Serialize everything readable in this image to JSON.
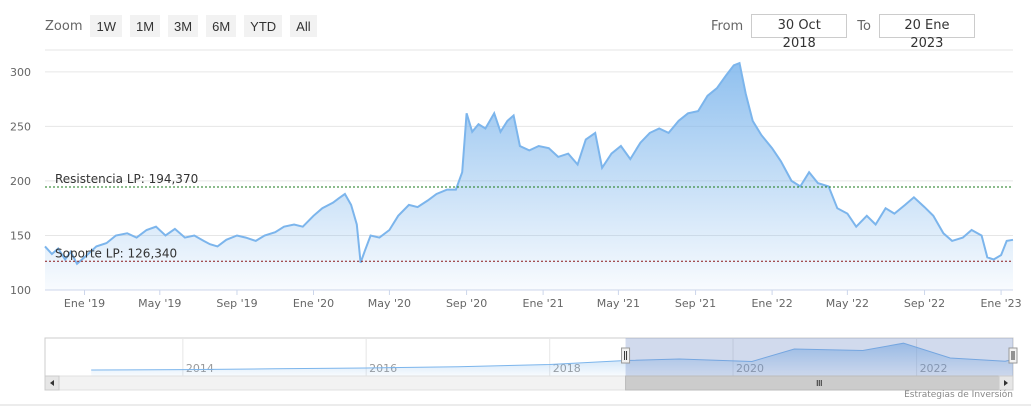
{
  "zoom": {
    "label": "Zoom",
    "buttons": [
      "1W",
      "1M",
      "3M",
      "6M",
      "YTD",
      "All"
    ]
  },
  "range": {
    "from_label": "From",
    "from_value": "30 Oct 2018",
    "to_label": "To",
    "to_value": "20 Ene 2023"
  },
  "credit": "Estrategias de Inversión",
  "colors": {
    "line": "#7cb5ec",
    "area_top": "#7cb5ec",
    "resistance": "#1a7a1a",
    "support": "#8b1a1a",
    "navigator_mask": "#6685c2",
    "grid": "#e6e6e6"
  },
  "chart_data": {
    "type": "area",
    "ylim": [
      100,
      320
    ],
    "yticks": [
      100,
      150,
      200,
      250,
      300
    ],
    "xlim": [
      "2018-10-30",
      "2023-01-20"
    ],
    "xticks": [
      {
        "date": "2019-01-01",
        "label": "Ene '19"
      },
      {
        "date": "2019-05-01",
        "label": "May '19"
      },
      {
        "date": "2019-09-01",
        "label": "Sep '19"
      },
      {
        "date": "2020-01-01",
        "label": "Ene '20"
      },
      {
        "date": "2020-05-01",
        "label": "May '20"
      },
      {
        "date": "2020-09-01",
        "label": "Sep '20"
      },
      {
        "date": "2021-01-01",
        "label": "Ene '21"
      },
      {
        "date": "2021-05-01",
        "label": "May '21"
      },
      {
        "date": "2021-09-01",
        "label": "Sep '21"
      },
      {
        "date": "2022-01-01",
        "label": "Ene '22"
      },
      {
        "date": "2022-05-01",
        "label": "May '22"
      },
      {
        "date": "2022-09-01",
        "label": "Sep '22"
      },
      {
        "date": "2023-01-01",
        "label": "Ene '23"
      }
    ],
    "plot_lines": [
      {
        "label": "Resistencia LP: 194,370",
        "value": 194.37,
        "color": "#1a7a1a"
      },
      {
        "label": "Soporte LP: 126,340",
        "value": 126.34,
        "color": "#8b1a1a"
      }
    ],
    "series": [
      {
        "points": [
          [
            "2018-10-30",
            140
          ],
          [
            "2018-11-10",
            133
          ],
          [
            "2018-11-20",
            138
          ],
          [
            "2018-12-01",
            128
          ],
          [
            "2018-12-10",
            135
          ],
          [
            "2018-12-20",
            124
          ],
          [
            "2019-01-01",
            130
          ],
          [
            "2019-01-20",
            140
          ],
          [
            "2019-02-05",
            143
          ],
          [
            "2019-02-20",
            150
          ],
          [
            "2019-03-10",
            152
          ],
          [
            "2019-03-25",
            148
          ],
          [
            "2019-04-10",
            155
          ],
          [
            "2019-04-25",
            158
          ],
          [
            "2019-05-10",
            150
          ],
          [
            "2019-05-25",
            156
          ],
          [
            "2019-06-10",
            148
          ],
          [
            "2019-06-25",
            150
          ],
          [
            "2019-07-10",
            145
          ],
          [
            "2019-07-20",
            142
          ],
          [
            "2019-08-01",
            140
          ],
          [
            "2019-08-15",
            146
          ],
          [
            "2019-09-01",
            150
          ],
          [
            "2019-09-15",
            148
          ],
          [
            "2019-10-01",
            145
          ],
          [
            "2019-10-15",
            150
          ],
          [
            "2019-11-01",
            153
          ],
          [
            "2019-11-15",
            158
          ],
          [
            "2019-12-01",
            160
          ],
          [
            "2019-12-15",
            158
          ],
          [
            "2020-01-01",
            168
          ],
          [
            "2020-01-15",
            175
          ],
          [
            "2020-02-01",
            180
          ],
          [
            "2020-02-10",
            184
          ],
          [
            "2020-02-20",
            188
          ],
          [
            "2020-03-01",
            178
          ],
          [
            "2020-03-10",
            160
          ],
          [
            "2020-03-16",
            125
          ],
          [
            "2020-03-23",
            136
          ],
          [
            "2020-04-01",
            150
          ],
          [
            "2020-04-15",
            148
          ],
          [
            "2020-05-01",
            155
          ],
          [
            "2020-05-15",
            168
          ],
          [
            "2020-06-01",
            178
          ],
          [
            "2020-06-15",
            176
          ],
          [
            "2020-07-01",
            182
          ],
          [
            "2020-07-15",
            188
          ],
          [
            "2020-08-01",
            192
          ],
          [
            "2020-08-15",
            192
          ],
          [
            "2020-08-25",
            208
          ],
          [
            "2020-09-01",
            262
          ],
          [
            "2020-09-10",
            245
          ],
          [
            "2020-09-20",
            252
          ],
          [
            "2020-10-01",
            248
          ],
          [
            "2020-10-15",
            262
          ],
          [
            "2020-10-25",
            245
          ],
          [
            "2020-11-05",
            255
          ],
          [
            "2020-11-15",
            260
          ],
          [
            "2020-11-25",
            232
          ],
          [
            "2020-12-10",
            228
          ],
          [
            "2020-12-25",
            232
          ],
          [
            "2021-01-10",
            230
          ],
          [
            "2021-01-25",
            222
          ],
          [
            "2021-02-10",
            225
          ],
          [
            "2021-02-25",
            215
          ],
          [
            "2021-03-10",
            238
          ],
          [
            "2021-03-25",
            244
          ],
          [
            "2021-04-05",
            212
          ],
          [
            "2021-04-20",
            225
          ],
          [
            "2021-05-05",
            232
          ],
          [
            "2021-05-20",
            220
          ],
          [
            "2021-06-05",
            235
          ],
          [
            "2021-06-20",
            244
          ],
          [
            "2021-07-05",
            248
          ],
          [
            "2021-07-20",
            244
          ],
          [
            "2021-08-05",
            255
          ],
          [
            "2021-08-20",
            262
          ],
          [
            "2021-09-05",
            264
          ],
          [
            "2021-09-20",
            278
          ],
          [
            "2021-10-05",
            285
          ],
          [
            "2021-10-20",
            297
          ],
          [
            "2021-11-01",
            306
          ],
          [
            "2021-11-10",
            308
          ],
          [
            "2021-11-20",
            280
          ],
          [
            "2021-12-01",
            255
          ],
          [
            "2021-12-15",
            242
          ],
          [
            "2022-01-01",
            230
          ],
          [
            "2022-01-15",
            218
          ],
          [
            "2022-02-01",
            200
          ],
          [
            "2022-02-15",
            195
          ],
          [
            "2022-03-01",
            208
          ],
          [
            "2022-03-15",
            198
          ],
          [
            "2022-04-01",
            195
          ],
          [
            "2022-04-15",
            175
          ],
          [
            "2022-05-01",
            170
          ],
          [
            "2022-05-15",
            158
          ],
          [
            "2022-06-01",
            168
          ],
          [
            "2022-06-15",
            160
          ],
          [
            "2022-07-01",
            175
          ],
          [
            "2022-07-15",
            170
          ],
          [
            "2022-08-01",
            178
          ],
          [
            "2022-08-15",
            185
          ],
          [
            "2022-09-01",
            176
          ],
          [
            "2022-09-15",
            168
          ],
          [
            "2022-10-01",
            152
          ],
          [
            "2022-10-15",
            145
          ],
          [
            "2022-11-01",
            148
          ],
          [
            "2022-11-15",
            155
          ],
          [
            "2022-12-01",
            150
          ],
          [
            "2022-12-10",
            130
          ],
          [
            "2022-12-20",
            128
          ],
          [
            "2023-01-01",
            132
          ],
          [
            "2023-01-10",
            145
          ],
          [
            "2023-01-20",
            146
          ]
        ]
      }
    ],
    "navigator": {
      "xticks": [
        "2014",
        "2016",
        "2018",
        "2020",
        "2022"
      ],
      "points": [
        [
          "2013-01-01",
          40
        ],
        [
          "2014-01-01",
          44
        ],
        [
          "2015-01-01",
          52
        ],
        [
          "2016-01-01",
          60
        ],
        [
          "2017-01-01",
          72
        ],
        [
          "2018-01-01",
          95
        ],
        [
          "2018-10-30",
          135
        ],
        [
          "2019-06-01",
          150
        ],
        [
          "2020-03-16",
          125
        ],
        [
          "2020-09-01",
          250
        ],
        [
          "2021-06-01",
          235
        ],
        [
          "2021-11-10",
          308
        ],
        [
          "2022-05-15",
          160
        ],
        [
          "2022-12-20",
          128
        ],
        [
          "2023-01-20",
          146
        ]
      ]
    }
  }
}
